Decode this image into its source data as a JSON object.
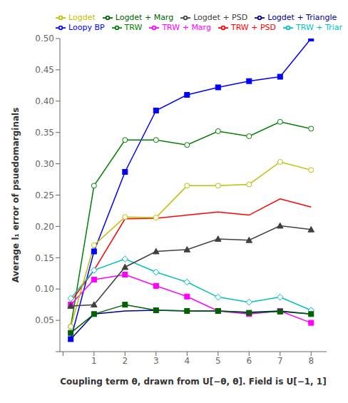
{
  "chart_data": {
    "type": "line",
    "x": [
      0.25,
      1,
      2,
      3,
      4,
      5,
      6,
      7,
      8
    ],
    "series": [
      {
        "name": "Loopy BP",
        "color": "#0000ff",
        "marker": "square",
        "values": [
          0.02,
          0.16,
          0.287,
          0.385,
          0.41,
          0.422,
          0.432,
          0.439,
          0.5
        ]
      },
      {
        "name": "TRW",
        "color": "#007f00",
        "marker": "open circle",
        "values": [
          0.04,
          0.265,
          0.338,
          0.338,
          0.33,
          0.352,
          0.344,
          0.367,
          0.356
        ]
      },
      {
        "name": "TRW + PSD",
        "color": "#ff0000",
        "values": [
          0.08,
          0.13,
          0.212,
          0.213,
          0.218,
          0.223,
          0.218,
          0.244,
          0.231
        ]
      },
      {
        "name": "TRW + Triangle",
        "color": "#00bfbf",
        "marker": "open diamond",
        "values": [
          0.085,
          0.13,
          0.148,
          0.127,
          0.111,
          0.087,
          0.079,
          0.087,
          0.066
        ]
      },
      {
        "name": "TRW + Marg",
        "color": "#ff00ff",
        "marker": "square",
        "values": [
          0.075,
          0.115,
          0.123,
          0.105,
          0.088,
          0.065,
          0.06,
          0.065,
          0.046
        ]
      },
      {
        "name": "Logdet",
        "color": "#bfbf00",
        "marker": "open circle",
        "values": [
          0.04,
          0.17,
          0.215,
          0.214,
          0.265,
          0.265,
          0.267,
          0.303,
          0.29
        ]
      },
      {
        "name": "Logdet + PSD",
        "color": "#404040",
        "marker": "triangle",
        "values": [
          0.073,
          0.075,
          0.135,
          0.16,
          0.163,
          0.18,
          0.178,
          0.201,
          0.195
        ]
      },
      {
        "name": "Logdet + Triangle",
        "color": "#00008f",
        "values": [
          0.02,
          0.06,
          0.065,
          0.066,
          0.065,
          0.065,
          0.063,
          0.065,
          0.06
        ]
      },
      {
        "name": "Logdet + Marg",
        "color": "#005f00",
        "marker": "square",
        "values": [
          0.03,
          0.06,
          0.075,
          0.066,
          0.065,
          0.065,
          0.062,
          0.064,
          0.06
        ]
      }
    ],
    "xlabel": "Coupling term θ, drawn from U[−θ, θ]. Field is U[−1, 1]",
    "ylabel": "Average l₁ error of psuedomarginals",
    "xlim": [
      -0.1,
      8.5
    ],
    "ylim": [
      0,
      0.5
    ],
    "xticks": [
      {
        "value": 0,
        "label": null
      },
      1,
      2,
      3,
      4,
      5,
      6,
      7,
      8
    ],
    "yticks": [
      {
        "value": 0,
        "label": null
      },
      {
        "value": 0.05,
        "label": "0.05"
      },
      {
        "value": 0.1,
        "label": "0.10"
      },
      {
        "value": 0.15,
        "label": "0.15"
      },
      {
        "value": 0.2,
        "label": "0.20"
      },
      {
        "value": 0.25,
        "label": "0.25"
      },
      {
        "value": 0.3,
        "label": "0.30"
      },
      {
        "value": 0.35,
        "label": "0.35"
      },
      {
        "value": 0.4,
        "label": "0.40"
      },
      {
        "value": 0.45,
        "label": "0.45"
      },
      {
        "value": 0.5,
        "label": "0.50"
      }
    ],
    "grid": false,
    "legend": "top"
  }
}
